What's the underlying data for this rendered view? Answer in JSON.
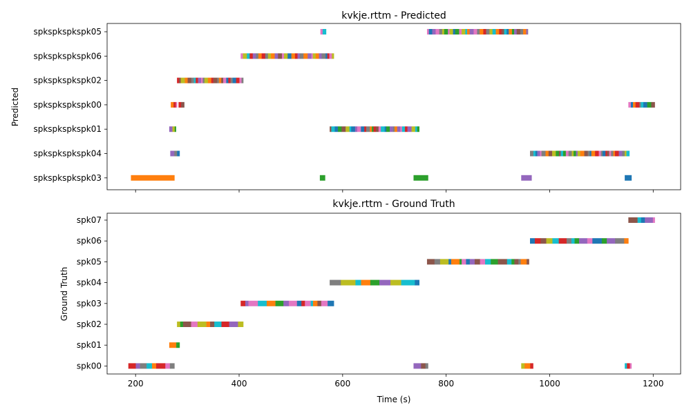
{
  "chart_data": [
    {
      "type": "timeline",
      "title": "kvkje.rttm - Predicted",
      "xlabel": "",
      "ylabel": "Predicted",
      "xlim": [
        145,
        1253
      ],
      "xticks": [
        200,
        400,
        600,
        800,
        1000,
        1200
      ],
      "show_xtick_labels": false,
      "grid": false,
      "rows": [
        {
          "label": "spkspkspkspk05",
          "density": "dense",
          "segments": [
            [
              557,
              568
            ],
            [
              763,
              958
            ]
          ]
        },
        {
          "label": "spkspkspkspk06",
          "density": "dense",
          "segments": [
            [
              403,
              583
            ]
          ]
        },
        {
          "label": "spkspkspkspk02",
          "density": "dense",
          "segments": [
            [
              280,
              408
            ]
          ]
        },
        {
          "label": "spkspkspkspk00",
          "density": "dense",
          "segments": [
            [
              268,
              280
            ],
            [
              283,
              294
            ],
            [
              1152,
              1203
            ]
          ]
        },
        {
          "label": "spkspkspkspk01",
          "density": "dense",
          "segments": [
            [
              265,
              278
            ],
            [
              575,
              748
            ]
          ]
        },
        {
          "label": "spkspkspkspk04",
          "density": "dense",
          "segments": [
            [
              267,
              285
            ],
            [
              962,
              1154
            ]
          ]
        },
        {
          "label": "spkspkspkspk03",
          "density": "sparse",
          "segments": [
            [
              191,
              275
            ],
            [
              556,
              566
            ],
            [
              737,
              765
            ],
            [
              945,
              965
            ],
            [
              1145,
              1158
            ]
          ]
        }
      ]
    },
    {
      "type": "timeline",
      "title": "kvkje.rttm - Ground Truth",
      "xlabel": "Time (s)",
      "ylabel": "Ground Truth",
      "xlim": [
        145,
        1253
      ],
      "xticks": [
        200,
        400,
        600,
        800,
        1000,
        1200
      ],
      "show_xtick_labels": true,
      "grid": false,
      "rows": [
        {
          "label": "spk07",
          "density": "mixed",
          "segments": [
            [
              1152,
              1203
            ]
          ]
        },
        {
          "label": "spk06",
          "density": "mixed",
          "segments": [
            [
              962,
              1152
            ]
          ]
        },
        {
          "label": "spk05",
          "density": "mixed",
          "segments": [
            [
              763,
              960
            ]
          ]
        },
        {
          "label": "spk04",
          "density": "coarse",
          "segments": [
            [
              575,
              748
            ]
          ]
        },
        {
          "label": "spk03",
          "density": "mixed",
          "segments": [
            [
              403,
              583
            ]
          ]
        },
        {
          "label": "spk02",
          "density": "mixed",
          "segments": [
            [
              280,
              408
            ]
          ]
        },
        {
          "label": "spk01",
          "density": "coarse",
          "segments": [
            [
              265,
              285
            ]
          ]
        },
        {
          "label": "spk00",
          "density": "mixed",
          "segments": [
            [
              186,
              275
            ],
            [
              737,
              765
            ],
            [
              945,
              968
            ],
            [
              1145,
              1158
            ]
          ]
        }
      ]
    }
  ],
  "colors": [
    "#1f77b4",
    "#ff7f0e",
    "#2ca02c",
    "#d62728",
    "#9467bd",
    "#8c564b",
    "#e377c2",
    "#7f7f7f",
    "#bcbd22",
    "#17becf"
  ]
}
